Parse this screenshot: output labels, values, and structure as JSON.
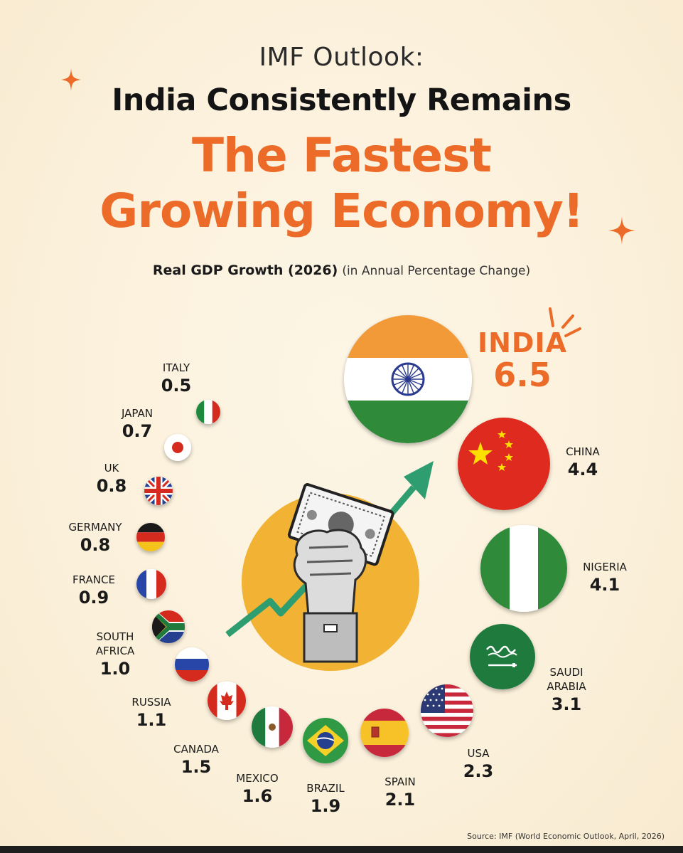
{
  "header": {
    "kicker": "IMF Outlook:",
    "headline": "India Consistently Remains",
    "accent_line1": "The Fastest",
    "accent_line2": "Growing Economy!"
  },
  "subtitle": {
    "main": "Real GDP Growth (2026)",
    "note": "(in Annual Percentage Change)"
  },
  "source": "Source: IMF (World Economic Outlook, April, 2026)",
  "colors": {
    "accent": "#ec6b28",
    "background": "#fbf1dc",
    "text": "#1a1a1a",
    "sun": "#f2b233",
    "arrow": "#2e9d6f"
  },
  "chart_data": {
    "type": "bubble",
    "title": "Real GDP Growth (2026)",
    "unit": "Annual Percentage Change",
    "categories": [
      "ITALY",
      "JAPAN",
      "UK",
      "GERMANY",
      "FRANCE",
      "SOUTH AFRICA",
      "RUSSIA",
      "CANADA",
      "MEXICO",
      "BRAZIL",
      "SPAIN",
      "USA",
      "SAUDI ARABIA",
      "NIGERIA",
      "CHINA",
      "INDIA"
    ],
    "values": [
      0.5,
      0.7,
      0.8,
      0.8,
      0.9,
      1.0,
      1.1,
      1.5,
      1.6,
      1.9,
      2.1,
      2.3,
      3.1,
      4.1,
      4.4,
      6.5
    ],
    "labels": {
      "italy": {
        "name": "ITALY",
        "value": "0.5"
      },
      "japan": {
        "name": "JAPAN",
        "value": "0.7"
      },
      "uk": {
        "name": "UK",
        "value": "0.8"
      },
      "germany": {
        "name": "GERMANY",
        "value": "0.8"
      },
      "france": {
        "name": "FRANCE",
        "value": "0.9"
      },
      "south_africa": {
        "name1": "SOUTH",
        "name2": "AFRICA",
        "value": "1.0"
      },
      "russia": {
        "name": "RUSSIA",
        "value": "1.1"
      },
      "canada": {
        "name": "CANADA",
        "value": "1.5"
      },
      "mexico": {
        "name": "MEXICO",
        "value": "1.6"
      },
      "brazil": {
        "name": "BRAZIL",
        "value": "1.9"
      },
      "spain": {
        "name": "SPAIN",
        "value": "2.1"
      },
      "usa": {
        "name": "USA",
        "value": "2.3"
      },
      "saudi_arabia": {
        "name1": "SAUDI",
        "name2": "ARABIA",
        "value": "3.1"
      },
      "nigeria": {
        "name": "NIGERIA",
        "value": "4.1"
      },
      "china": {
        "name": "CHINA",
        "value": "4.4"
      },
      "india": {
        "name": "INDIA",
        "value": "6.5"
      }
    }
  }
}
